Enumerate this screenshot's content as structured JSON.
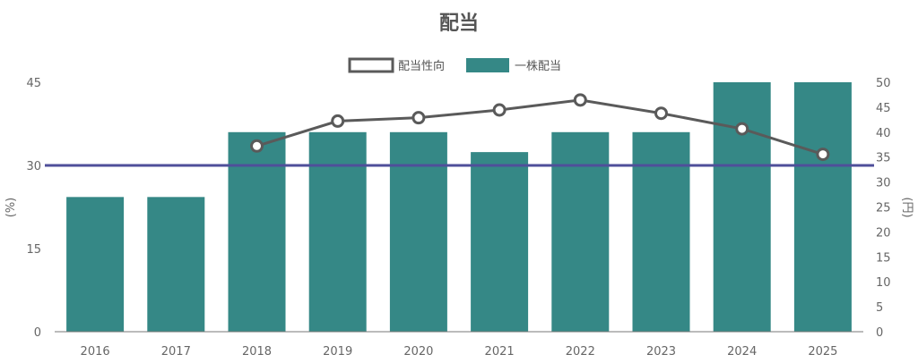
{
  "chart_data": {
    "type": "bar",
    "title": "配当",
    "categories": [
      "2016",
      "2017",
      "2018",
      "2019",
      "2020",
      "2021",
      "2022",
      "2023",
      "2024",
      "2025"
    ],
    "series": [
      {
        "name": "一株配当",
        "type": "bar",
        "axis": "right",
        "color": "#358886",
        "values": [
          27,
          27,
          40,
          40,
          40,
          36,
          40,
          40,
          50,
          50
        ]
      },
      {
        "name": "配当性向",
        "type": "line",
        "axis": "left",
        "color": "#5a5a5a",
        "values": [
          null,
          null,
          33.5,
          38.0,
          38.6,
          40.0,
          41.8,
          39.4,
          36.6,
          32.0
        ]
      }
    ],
    "left_axis": {
      "label": "(%)",
      "min": 0,
      "max": 45,
      "ticks": [
        "0",
        "15",
        "30",
        "45"
      ]
    },
    "right_axis": {
      "label": "(円)",
      "min": 0,
      "max": 50,
      "ticks": [
        "0",
        "5",
        "10",
        "15",
        "20",
        "25",
        "30",
        "35",
        "40",
        "45",
        "50"
      ]
    },
    "reference_line": {
      "axis": "left",
      "value": 30,
      "color": "#4f4f9a"
    },
    "legend_position": "top-center",
    "grid": false
  }
}
